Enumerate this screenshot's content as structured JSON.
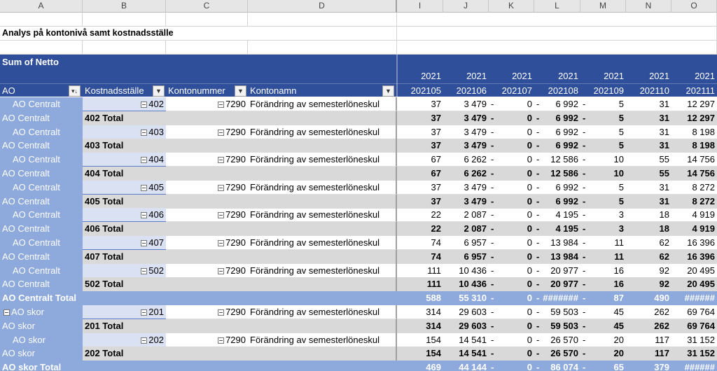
{
  "columns": [
    "A",
    "B",
    "C",
    "D",
    "I",
    "J",
    "K",
    "L",
    "M",
    "N",
    "O"
  ],
  "title": "Analys på kontonivå samt kostnadsställe",
  "pivot": {
    "value_label": "Sum of Netto",
    "headers": {
      "ao": "AO",
      "kostnadsstalle": "Kostnadsställe",
      "kontonummer": "Kontonummer",
      "kontonamn": "Kontonamn"
    },
    "years": [
      "2021",
      "2021",
      "2021",
      "2021",
      "2021",
      "2021",
      "2021"
    ],
    "periods": [
      "202105",
      "202106",
      "202107",
      "202108",
      "202109",
      "202110",
      "202111"
    ]
  },
  "rows": [
    {
      "type": "detail",
      "ao": "AO Centralt",
      "ks": "402",
      "knr": "7290",
      "knamn": "Förändring av semesterlöneskul",
      "v": [
        "37",
        "3 479",
        "0",
        "6 992",
        "5",
        "31",
        "12 297"
      ],
      "dashK": "-",
      "dashL": "-",
      "dashM": "-"
    },
    {
      "type": "total",
      "ao": "AO Centralt",
      "label": "402 Total",
      "v": [
        "37",
        "3 479",
        "0",
        "6 992",
        "5",
        "31",
        "12 297"
      ],
      "dashK": "-",
      "dashL": "-",
      "dashM": "-"
    },
    {
      "type": "detail",
      "ao": "AO Centralt",
      "ks": "403",
      "knr": "7290",
      "knamn": "Förändring av semesterlöneskul",
      "v": [
        "37",
        "3 479",
        "0",
        "6 992",
        "5",
        "31",
        "8 198"
      ],
      "dashK": "-",
      "dashL": "-",
      "dashM": "-"
    },
    {
      "type": "total",
      "ao": "AO Centralt",
      "label": "403 Total",
      "v": [
        "37",
        "3 479",
        "0",
        "6 992",
        "5",
        "31",
        "8 198"
      ],
      "dashK": "-",
      "dashL": "-",
      "dashM": "-"
    },
    {
      "type": "detail",
      "ao": "AO Centralt",
      "ks": "404",
      "knr": "7290",
      "knamn": "Förändring av semesterlöneskul",
      "v": [
        "67",
        "6 262",
        "0",
        "12 586",
        "10",
        "55",
        "14 756"
      ],
      "dashK": "-",
      "dashL": "-",
      "dashM": "-"
    },
    {
      "type": "total",
      "ao": "AO Centralt",
      "label": "404 Total",
      "v": [
        "67",
        "6 262",
        "0",
        "12 586",
        "10",
        "55",
        "14 756"
      ],
      "dashK": "-",
      "dashL": "-",
      "dashM": "-"
    },
    {
      "type": "detail",
      "ao": "AO Centralt",
      "ks": "405",
      "knr": "7290",
      "knamn": "Förändring av semesterlöneskul",
      "v": [
        "37",
        "3 479",
        "0",
        "6 992",
        "5",
        "31",
        "8 272"
      ],
      "dashK": "-",
      "dashL": "-",
      "dashM": "-"
    },
    {
      "type": "total",
      "ao": "AO Centralt",
      "label": "405 Total",
      "v": [
        "37",
        "3 479",
        "0",
        "6 992",
        "5",
        "31",
        "8 272"
      ],
      "dashK": "-",
      "dashL": "-",
      "dashM": "-"
    },
    {
      "type": "detail",
      "ao": "AO Centralt",
      "ks": "406",
      "knr": "7290",
      "knamn": "Förändring av semesterlöneskul",
      "v": [
        "22",
        "2 087",
        "0",
        "4 195",
        "3",
        "18",
        "4 919"
      ],
      "dashK": "-",
      "dashL": "-",
      "dashM": "-"
    },
    {
      "type": "total",
      "ao": "AO Centralt",
      "label": "406 Total",
      "v": [
        "22",
        "2 087",
        "0",
        "4 195",
        "3",
        "18",
        "4 919"
      ],
      "dashK": "-",
      "dashL": "-",
      "dashM": "-"
    },
    {
      "type": "detail",
      "ao": "AO Centralt",
      "ks": "407",
      "knr": "7290",
      "knamn": "Förändring av semesterlöneskul",
      "v": [
        "74",
        "6 957",
        "0",
        "13 984",
        "11",
        "62",
        "16 396"
      ],
      "dashK": "-",
      "dashL": "-",
      "dashM": "-"
    },
    {
      "type": "total",
      "ao": "AO Centralt",
      "label": "407 Total",
      "v": [
        "74",
        "6 957",
        "0",
        "13 984",
        "11",
        "62",
        "16 396"
      ],
      "dashK": "-",
      "dashL": "-",
      "dashM": "-"
    },
    {
      "type": "detail",
      "ao": "AO Centralt",
      "ks": "502",
      "knr": "7290",
      "knamn": "Förändring av semesterlöneskul",
      "v": [
        "111",
        "10 436",
        "0",
        "20 977",
        "16",
        "92",
        "20 495"
      ],
      "dashK": "-",
      "dashL": "-",
      "dashM": "-"
    },
    {
      "type": "total",
      "ao": "AO Centralt",
      "label": "502 Total",
      "v": [
        "111",
        "10 436",
        "0",
        "20 977",
        "16",
        "92",
        "20 495"
      ],
      "dashK": "-",
      "dashL": "-",
      "dashM": "-"
    },
    {
      "type": "grand",
      "label": "AO Centralt Total",
      "v": [
        "588",
        "55 310",
        "0",
        "#######",
        "87",
        "490",
        "######"
      ],
      "dashK": "-",
      "dashL": "-",
      "dashM": "-"
    },
    {
      "type": "detail",
      "ao": "AO skor",
      "aoMinus": true,
      "ks": "201",
      "knr": "7290",
      "knamn": "Förändring av semesterlöneskul",
      "v": [
        "314",
        "29 603",
        "0",
        "59 503",
        "45",
        "262",
        "69 764"
      ],
      "dashK": "-",
      "dashL": "-",
      "dashM": "-"
    },
    {
      "type": "total",
      "ao": "AO skor",
      "label": "201 Total",
      "v": [
        "314",
        "29 603",
        "0",
        "59 503",
        "45",
        "262",
        "69 764"
      ],
      "dashK": "-",
      "dashL": "-",
      "dashM": "-"
    },
    {
      "type": "detail",
      "ao": "AO skor",
      "ks": "202",
      "knr": "7290",
      "knamn": "Förändring av semesterlöneskul",
      "v": [
        "154",
        "14 541",
        "0",
        "26 570",
        "20",
        "117",
        "31 152"
      ],
      "dashK": "-",
      "dashL": "-",
      "dashM": "-"
    },
    {
      "type": "total",
      "ao": "AO skor",
      "label": "202 Total",
      "v": [
        "154",
        "14 541",
        "0",
        "26 570",
        "20",
        "117",
        "31 152"
      ],
      "dashK": "-",
      "dashL": "-",
      "dashM": "-"
    },
    {
      "type": "grand",
      "label": "AO skor Total",
      "v": [
        "469",
        "44 144",
        "0",
        "86 074",
        "65",
        "379",
        "######"
      ],
      "dashK": "-",
      "dashL": "-",
      "dashM": "-"
    }
  ]
}
